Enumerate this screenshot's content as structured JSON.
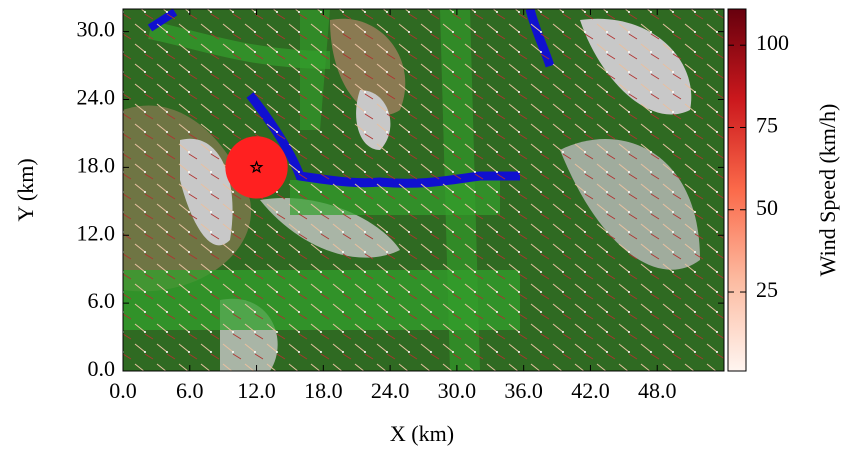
{
  "chart_data": {
    "type": "wind-map",
    "x_label": "X (km)",
    "y_label": "Y (km)",
    "xlim": [
      0,
      54
    ],
    "ylim": [
      0,
      32
    ],
    "xticks": [
      {
        "value": 0,
        "label": "0.0"
      },
      {
        "value": 6,
        "label": "6.0"
      },
      {
        "value": 12,
        "label": "12.0"
      },
      {
        "value": 18,
        "label": "18.0"
      },
      {
        "value": 24,
        "label": "24.0"
      },
      {
        "value": 30,
        "label": "30.0"
      },
      {
        "value": 36,
        "label": "36.0"
      },
      {
        "value": 42,
        "label": "42.0"
      },
      {
        "value": 48,
        "label": "48.0"
      }
    ],
    "yticks": [
      {
        "value": 0,
        "label": "0.0"
      },
      {
        "value": 6,
        "label": "6.0"
      },
      {
        "value": 12,
        "label": "12.0"
      },
      {
        "value": 18,
        "label": "18.0"
      },
      {
        "value": 24,
        "label": "24.0"
      },
      {
        "value": 30,
        "label": "30.0"
      }
    ],
    "colorbar": {
      "label": "Wind Speed (km/h)",
      "lim": [
        1,
        111
      ],
      "ticks": [
        25,
        50,
        75,
        100
      ],
      "colors": [
        "#fff5f0",
        "#fcbba1",
        "#fb6a4a",
        "#cb181d",
        "#67000d"
      ]
    },
    "source": {
      "x": 12,
      "y": 18,
      "color": "#ff2020"
    }
  }
}
